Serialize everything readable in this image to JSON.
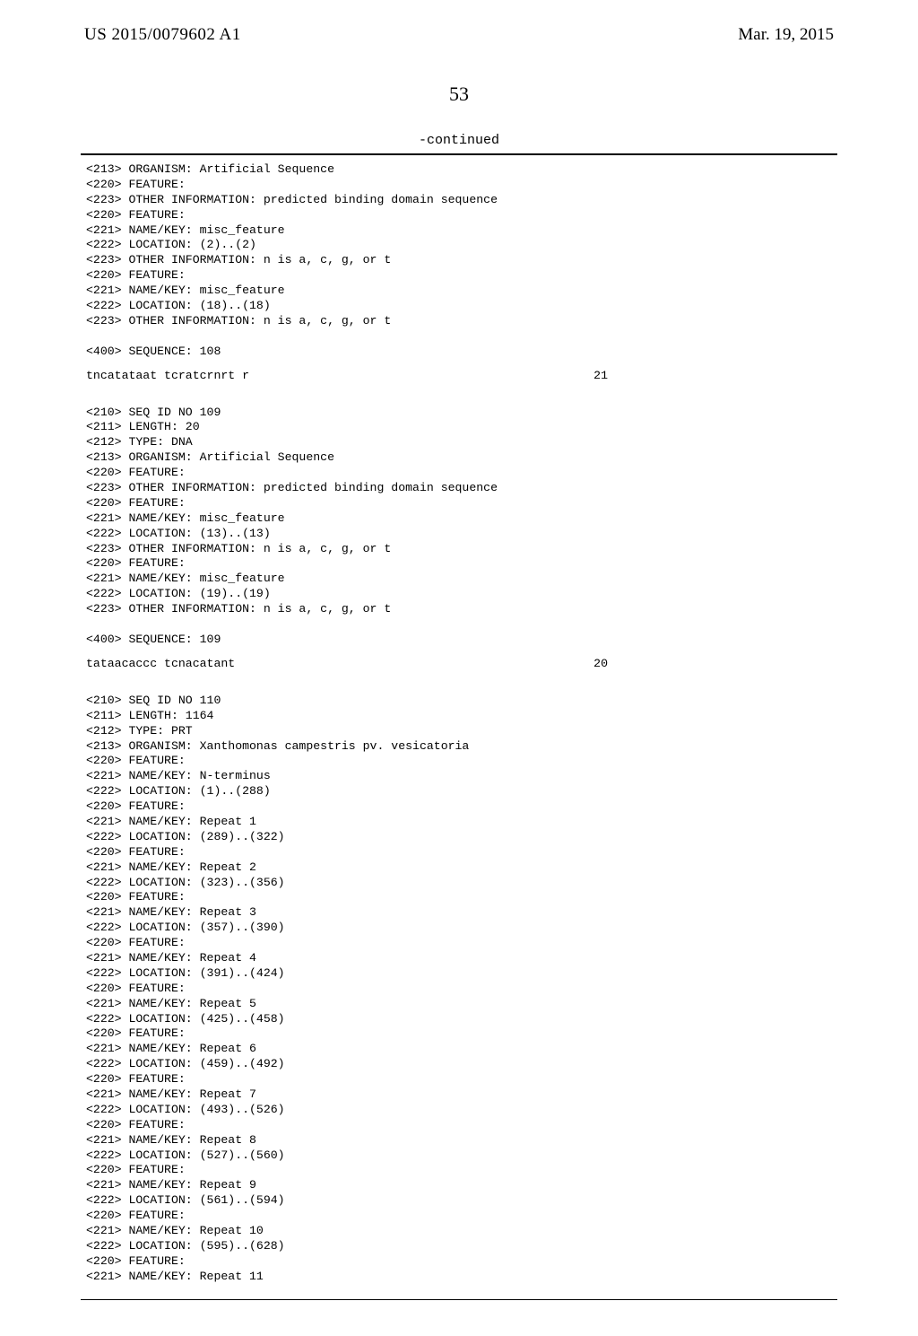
{
  "header": {
    "pub_number": "US 2015/0079602 A1",
    "pub_date": "Mar. 19, 2015"
  },
  "page_number": "53",
  "continued_label": "-continued",
  "block1_lines": [
    "<213> ORGANISM: Artificial Sequence",
    "<220> FEATURE:",
    "<223> OTHER INFORMATION: predicted binding domain sequence",
    "<220> FEATURE:",
    "<221> NAME/KEY: misc_feature",
    "<222> LOCATION: (2)..(2)",
    "<223> OTHER INFORMATION: n is a, c, g, or t",
    "<220> FEATURE:",
    "<221> NAME/KEY: misc_feature",
    "<222> LOCATION: (18)..(18)",
    "<223> OTHER INFORMATION: n is a, c, g, or t",
    "",
    "<400> SEQUENCE: 108"
  ],
  "seq1": {
    "text": "tncatataat tcratcrnrt r",
    "num": "21"
  },
  "block2_lines": [
    "<210> SEQ ID NO 109",
    "<211> LENGTH: 20",
    "<212> TYPE: DNA",
    "<213> ORGANISM: Artificial Sequence",
    "<220> FEATURE:",
    "<223> OTHER INFORMATION: predicted binding domain sequence",
    "<220> FEATURE:",
    "<221> NAME/KEY: misc_feature",
    "<222> LOCATION: (13)..(13)",
    "<223> OTHER INFORMATION: n is a, c, g, or t",
    "<220> FEATURE:",
    "<221> NAME/KEY: misc_feature",
    "<222> LOCATION: (19)..(19)",
    "<223> OTHER INFORMATION: n is a, c, g, or t",
    "",
    "<400> SEQUENCE: 109"
  ],
  "seq2": {
    "text": "tataacaccc tcnacatant",
    "num": "20"
  },
  "block3_lines": [
    "<210> SEQ ID NO 110",
    "<211> LENGTH: 1164",
    "<212> TYPE: PRT",
    "<213> ORGANISM: Xanthomonas campestris pv. vesicatoria",
    "<220> FEATURE:",
    "<221> NAME/KEY: N-terminus",
    "<222> LOCATION: (1)..(288)",
    "<220> FEATURE:",
    "<221> NAME/KEY: Repeat 1",
    "<222> LOCATION: (289)..(322)",
    "<220> FEATURE:",
    "<221> NAME/KEY: Repeat 2",
    "<222> LOCATION: (323)..(356)",
    "<220> FEATURE:",
    "<221> NAME/KEY: Repeat 3",
    "<222> LOCATION: (357)..(390)",
    "<220> FEATURE:",
    "<221> NAME/KEY: Repeat 4",
    "<222> LOCATION: (391)..(424)",
    "<220> FEATURE:",
    "<221> NAME/KEY: Repeat 5",
    "<222> LOCATION: (425)..(458)",
    "<220> FEATURE:",
    "<221> NAME/KEY: Repeat 6",
    "<222> LOCATION: (459)..(492)",
    "<220> FEATURE:",
    "<221> NAME/KEY: Repeat 7",
    "<222> LOCATION: (493)..(526)",
    "<220> FEATURE:",
    "<221> NAME/KEY: Repeat 8",
    "<222> LOCATION: (527)..(560)",
    "<220> FEATURE:",
    "<221> NAME/KEY: Repeat 9",
    "<222> LOCATION: (561)..(594)",
    "<220> FEATURE:",
    "<221> NAME/KEY: Repeat 10",
    "<222> LOCATION: (595)..(628)",
    "<220> FEATURE:",
    "<221> NAME/KEY: Repeat 11"
  ]
}
